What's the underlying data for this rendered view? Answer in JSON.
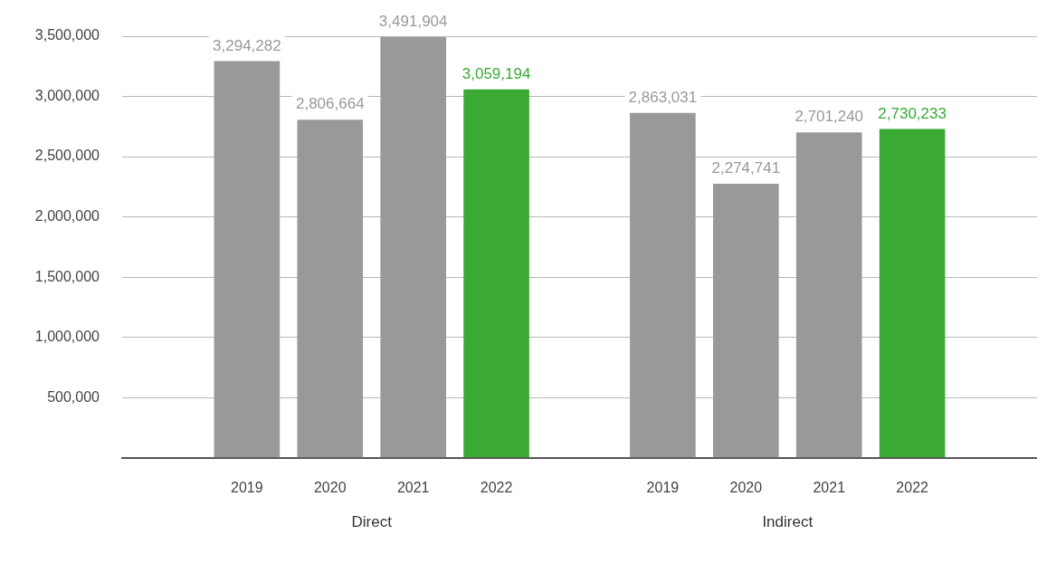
{
  "chart_data": {
    "type": "bar",
    "categories": [
      null,
      "2019",
      "2020",
      "2021",
      "2022",
      null,
      "2019",
      "2020",
      "2021",
      "2022",
      null
    ],
    "values": [
      null,
      3294282,
      2806664,
      3491904,
      3059194,
      null,
      2863031,
      2274741,
      2701240,
      2730233,
      null
    ],
    "colors": [
      "#999999",
      "#999999",
      "#999999",
      "#999999",
      "#3aaa35",
      "#999999",
      "#999999",
      "#999999",
      "#999999",
      "#3aaa35",
      "#999999"
    ],
    "value_labels": [
      null,
      "3,294,282",
      "2,806,664",
      "3,491,904",
      "3,059,194",
      null,
      "2,863,031",
      "2,274,741",
      "2,701,240",
      "2,730,233",
      null
    ],
    "ylim": [
      0,
      3500000
    ],
    "yticks": [
      {
        "value": 0,
        "label": null
      },
      {
        "value": 500000,
        "label": "500,000"
      },
      {
        "value": 1000000,
        "label": "1,000,000"
      },
      {
        "value": 1500000,
        "label": "1,500,000"
      },
      {
        "value": 2000000,
        "label": "2,000,000"
      },
      {
        "value": 2500000,
        "label": "2,500,000"
      },
      {
        "value": 3000000,
        "label": "3,000,000"
      },
      {
        "value": 3500000,
        "label": "3,500,000"
      }
    ],
    "annotations": [
      "Direct",
      "Indirect"
    ],
    "grid": "y",
    "legend": false
  }
}
